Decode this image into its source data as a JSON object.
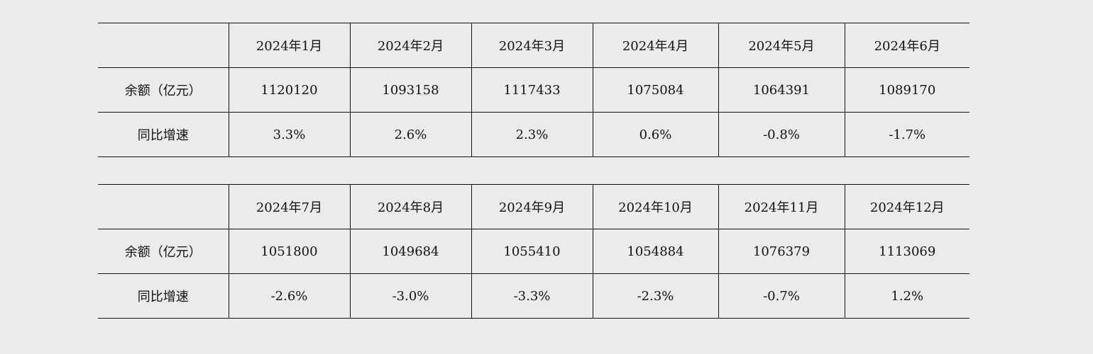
{
  "tables": [
    {
      "months": [
        "2024年1月",
        "2024年2月",
        "2024年3月",
        "2024年4月",
        "2024年5月",
        "2024年6月"
      ],
      "balance_label": "余额（亿元）",
      "balance": [
        "1120120",
        "1093158",
        "1117433",
        "1075084",
        "1064391",
        "1089170"
      ],
      "growth_label": "同比增速",
      "growth": [
        "3.3%",
        "2.6%",
        "2.3%",
        "0.6%",
        "-0.8%",
        "-1.7%"
      ]
    },
    {
      "months": [
        "2024年7月",
        "2024年8月",
        "2024年9月",
        "2024年10月",
        "2024年11月",
        "2024年12月"
      ],
      "balance_label": "余额（亿元）",
      "balance": [
        "1051800",
        "1049684",
        "1055410",
        "1054884",
        "1076379",
        "1113069"
      ],
      "growth_label": "同比增速",
      "growth": [
        "-2.6%",
        "-3.0%",
        "-3.3%",
        "-2.3%",
        "-0.7%",
        "1.2%"
      ]
    }
  ]
}
